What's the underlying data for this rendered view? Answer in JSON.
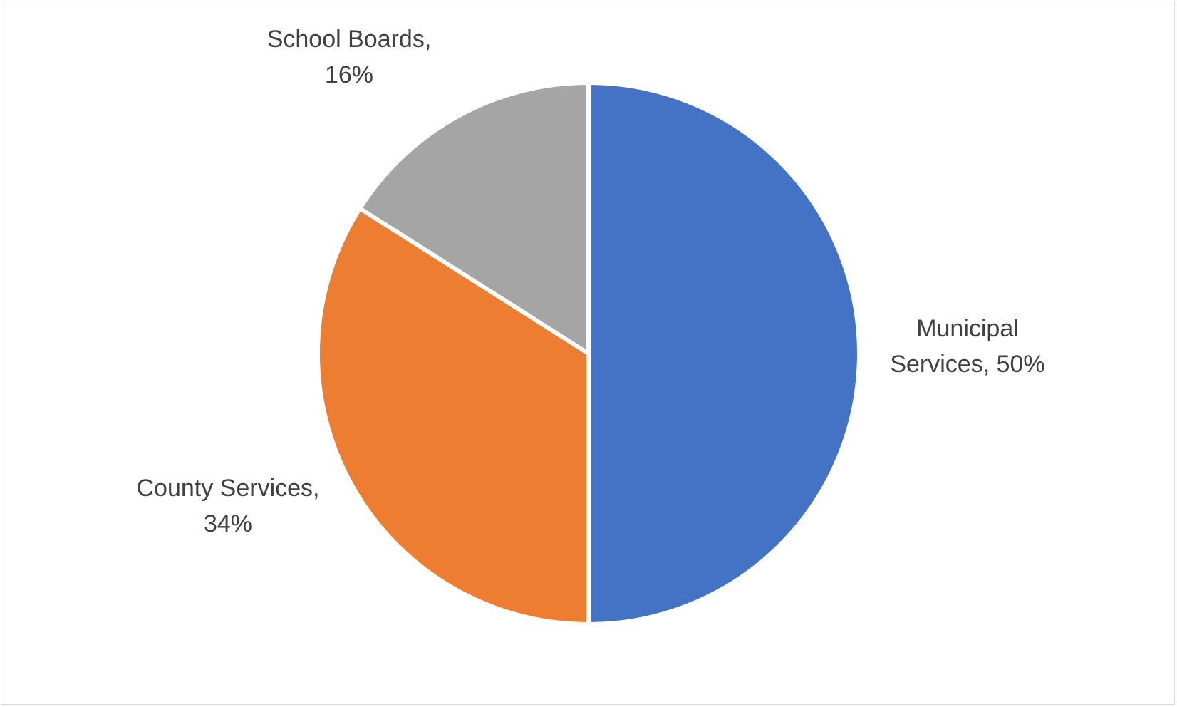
{
  "chart_data": {
    "type": "pie",
    "title": "",
    "categories": [
      "Municipal Services",
      "County Services",
      "School Boards"
    ],
    "values": [
      50,
      34,
      16
    ],
    "value_unit": "%",
    "data_labels": [
      [
        "Municipal",
        "Services, 50%"
      ],
      [
        "County Services,",
        "34%"
      ],
      [
        "School Boards,",
        "16%"
      ]
    ],
    "colors": [
      "#4472c4",
      "#ed7d31",
      "#a5a5a5"
    ],
    "start_angle": "12 o'clock",
    "direction": "clockwise",
    "legend": "none",
    "slice_border_color": "#ffffff"
  }
}
